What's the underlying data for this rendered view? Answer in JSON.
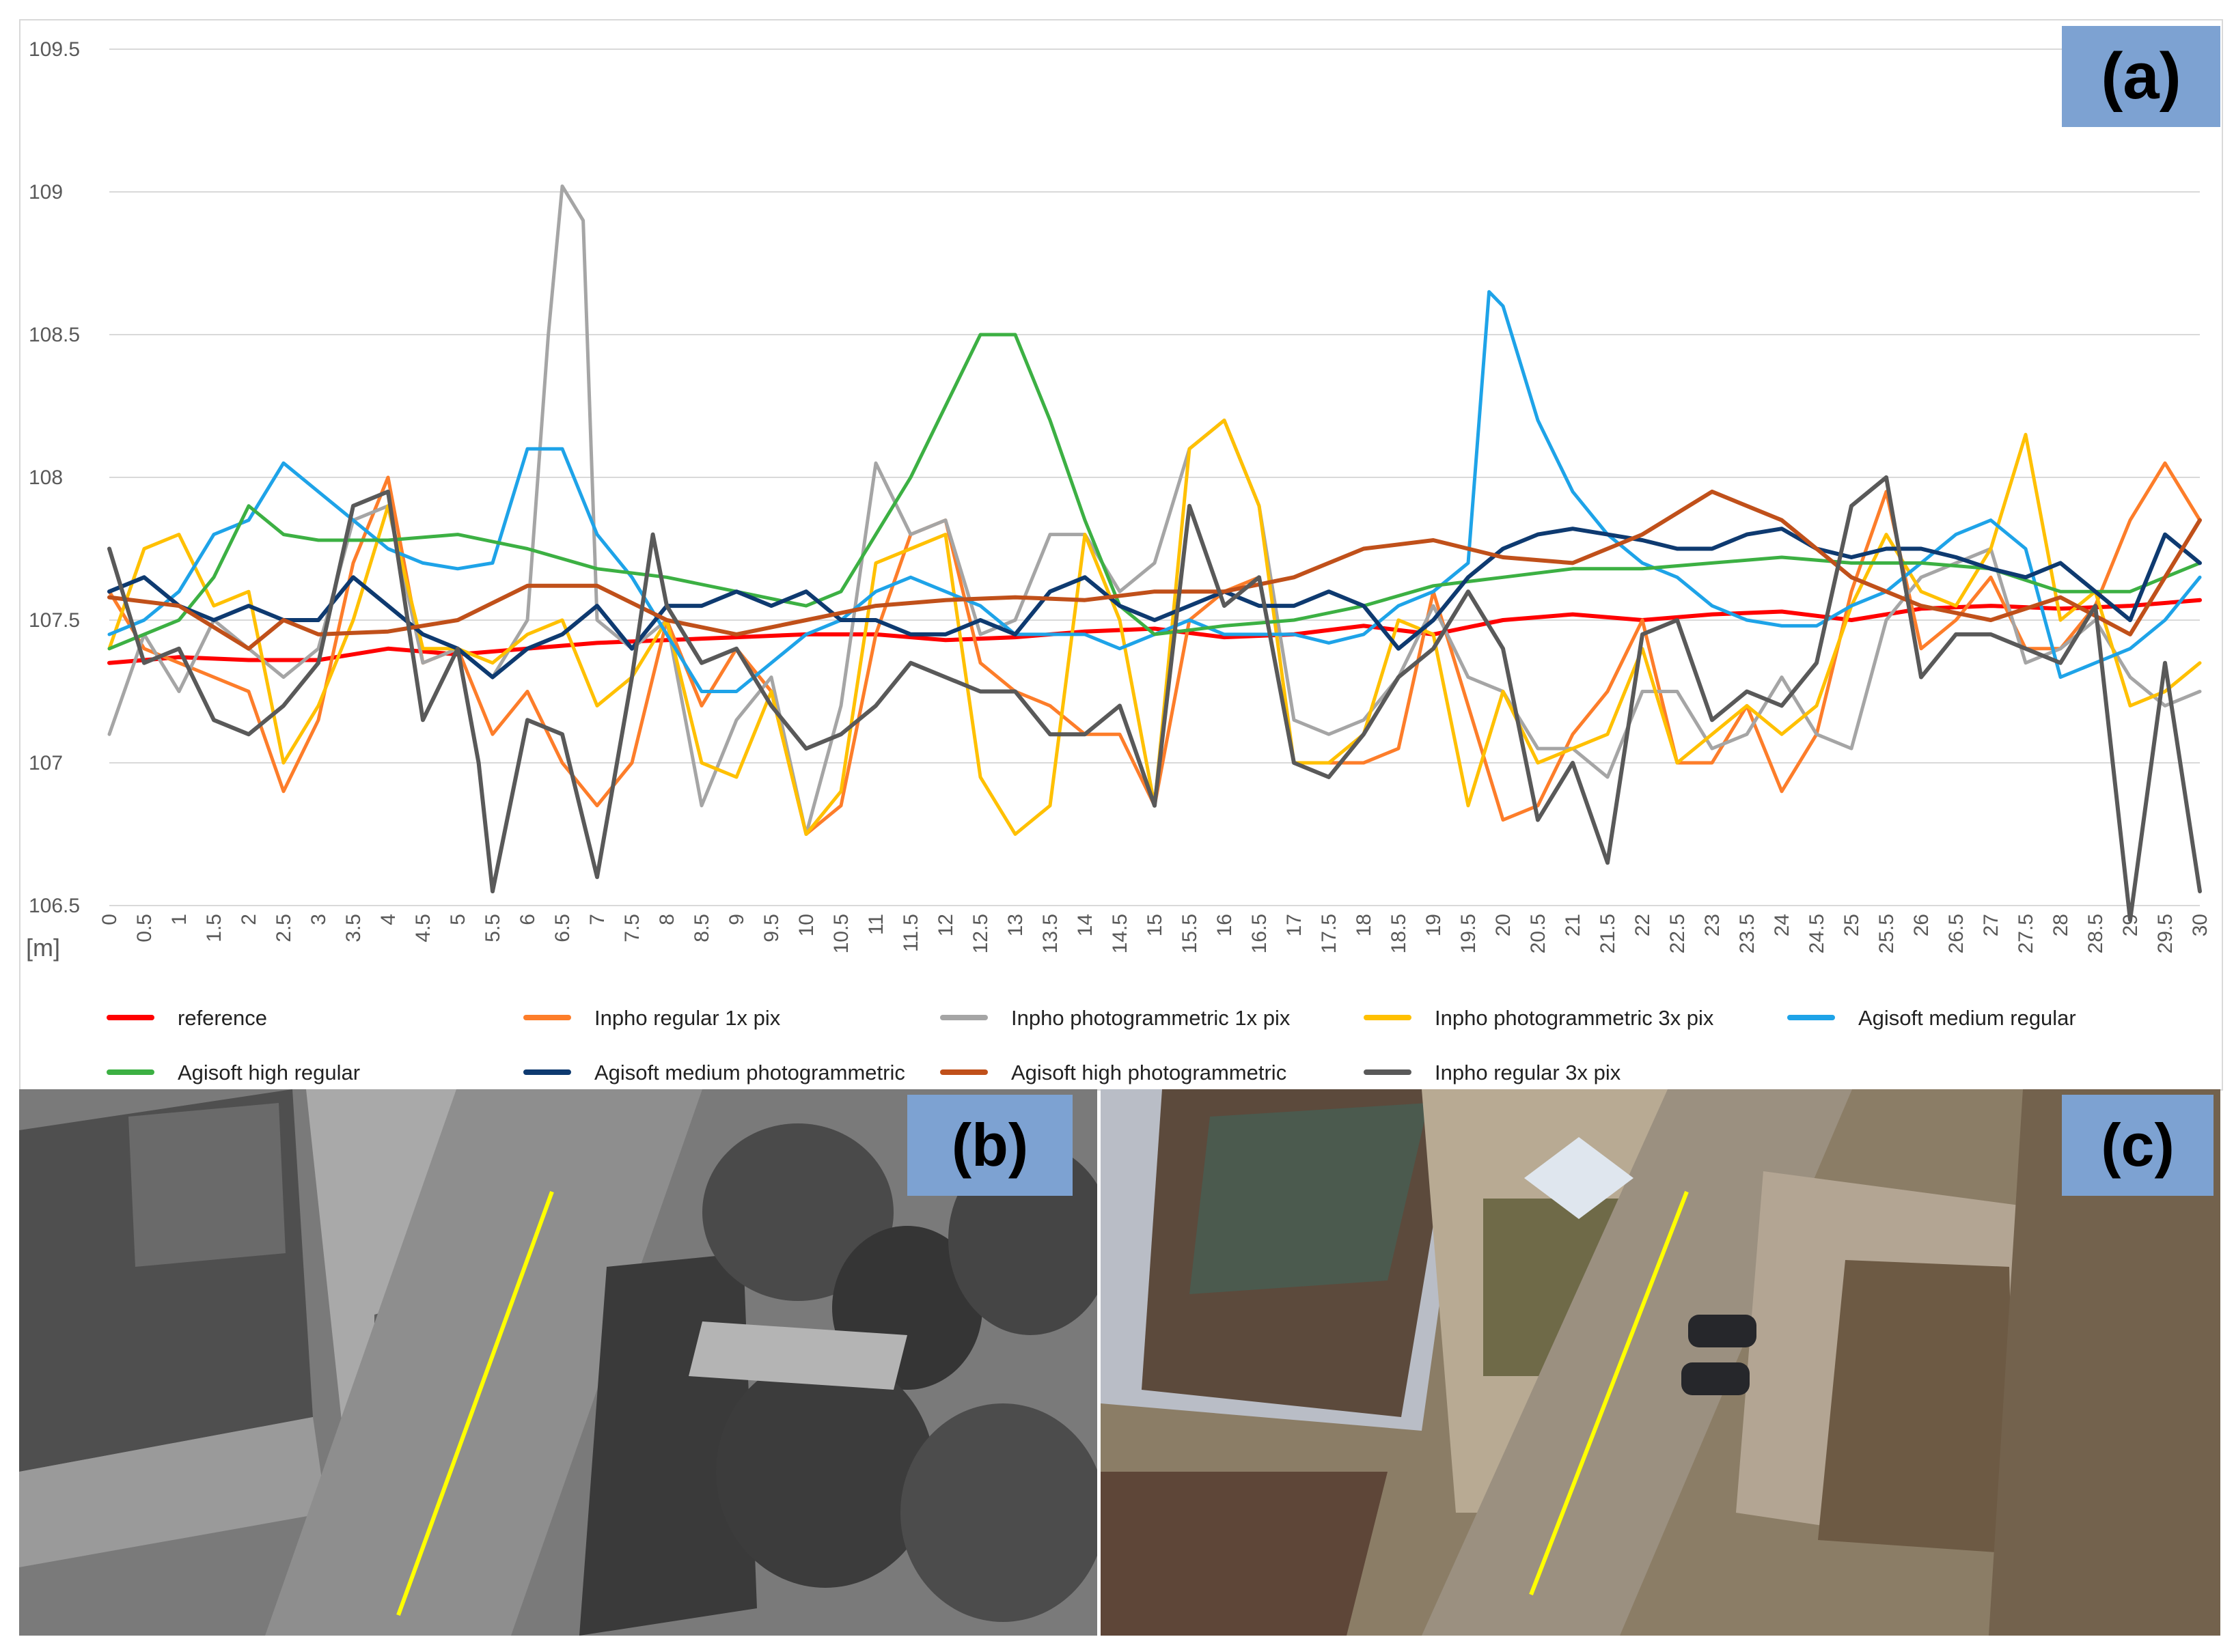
{
  "panels": {
    "a": "(a)",
    "b": "(b)",
    "c": "(c)"
  },
  "chart_data": {
    "type": "line",
    "title": "",
    "xlabel": "[m]",
    "ylabel": "",
    "xlim": [
      0,
      30
    ],
    "ylim": [
      106.5,
      109.5
    ],
    "x_ticks": [
      "0",
      "0.5",
      "1",
      "1.5",
      "2",
      "2.5",
      "3",
      "3.5",
      "4",
      "4.5",
      "5",
      "5.5",
      "6",
      "6.5",
      "7",
      "7.5",
      "8",
      "8.5",
      "9",
      "9.5",
      "10",
      "10.5",
      "11",
      "11.5",
      "12",
      "12.5",
      "13",
      "13.5",
      "14",
      "14.5",
      "15",
      "15.5",
      "16",
      "16.5",
      "17",
      "17.5",
      "18",
      "18.5",
      "19",
      "19.5",
      "20",
      "20.5",
      "21",
      "21.5",
      "22",
      "22.5",
      "23",
      "23.5",
      "24",
      "24.5",
      "25",
      "25.5",
      "26",
      "26.5",
      "27",
      "27.5",
      "28",
      "28.5",
      "29",
      "29.5",
      "30"
    ],
    "y_ticks": [
      "109.5",
      "109",
      "108.5",
      "108",
      "107.5",
      "107",
      "106.5"
    ],
    "grid": "horizontal",
    "legend_position": "bottom",
    "series": [
      {
        "name": "reference",
        "color": "#ff0000",
        "width": 6,
        "x": [
          0,
          1,
          2,
          3,
          4,
          5,
          6,
          7,
          8,
          9,
          10,
          11,
          12,
          13,
          14,
          15,
          16,
          17,
          18,
          19,
          20,
          21,
          22,
          23,
          24,
          25,
          26,
          27,
          28,
          29,
          30
        ],
        "y": [
          107.35,
          107.37,
          107.36,
          107.36,
          107.4,
          107.38,
          107.4,
          107.42,
          107.43,
          107.44,
          107.45,
          107.45,
          107.43,
          107.44,
          107.46,
          107.47,
          107.44,
          107.45,
          107.48,
          107.45,
          107.5,
          107.52,
          107.5,
          107.52,
          107.53,
          107.5,
          107.54,
          107.55,
          107.54,
          107.55,
          107.57
        ]
      },
      {
        "name": "Inpho regular 1x pix",
        "color": "#fd7d2a",
        "width": 5,
        "x": [
          0,
          0.5,
          1,
          1.5,
          2,
          2.5,
          3,
          3.5,
          4,
          4.5,
          5,
          5.5,
          6,
          6.5,
          7,
          7.5,
          8,
          8.5,
          9,
          9.5,
          10,
          10.5,
          11,
          11.5,
          12,
          12.5,
          13,
          13.5,
          14,
          14.5,
          15,
          15.5,
          16,
          16.5,
          17,
          17.5,
          18,
          18.5,
          19,
          19.5,
          20,
          20.5,
          21,
          21.5,
          22,
          22.5,
          23,
          23.5,
          24,
          24.5,
          25,
          25.5,
          26,
          26.5,
          27,
          27.5,
          28,
          28.5,
          29,
          29.5,
          30
        ],
        "y": [
          107.6,
          107.4,
          107.35,
          107.3,
          107.25,
          106.9,
          107.15,
          107.7,
          108.0,
          107.35,
          107.4,
          107.1,
          107.25,
          107.0,
          106.85,
          107.0,
          107.5,
          107.2,
          107.4,
          107.25,
          106.75,
          106.85,
          107.45,
          107.8,
          107.85,
          107.35,
          107.25,
          107.2,
          107.1,
          107.1,
          106.85,
          107.5,
          107.6,
          107.65,
          107.0,
          107.0,
          107.0,
          107.05,
          107.6,
          107.2,
          106.8,
          106.85,
          107.1,
          107.25,
          107.5,
          107.0,
          107.0,
          107.2,
          106.9,
          107.1,
          107.6,
          107.95,
          107.4,
          107.5,
          107.65,
          107.4,
          107.4,
          107.55,
          107.85,
          108.05,
          107.85
        ]
      },
      {
        "name": "Inpho photogrammetric 1x pix",
        "color": "#a5a5a5",
        "width": 5,
        "x": [
          0,
          0.5,
          1,
          1.5,
          2,
          2.5,
          3,
          3.5,
          4,
          4.5,
          5,
          5.5,
          6,
          6.3,
          6.5,
          6.8,
          7,
          7.5,
          8,
          8.5,
          9,
          9.5,
          10,
          10.5,
          11,
          11.5,
          12,
          12.5,
          13,
          13.5,
          14,
          14.5,
          15,
          15.5,
          16,
          16.5,
          17,
          17.5,
          18,
          18.5,
          19,
          19.5,
          20,
          20.5,
          21,
          21.5,
          22,
          22.5,
          23,
          23.5,
          24,
          24.5,
          25,
          25.5,
          26,
          26.5,
          27,
          27.5,
          28,
          28.5,
          29,
          29.5,
          30
        ],
        "y": [
          107.1,
          107.45,
          107.25,
          107.5,
          107.4,
          107.3,
          107.4,
          107.85,
          107.9,
          107.35,
          107.4,
          107.3,
          107.5,
          108.5,
          109.02,
          108.9,
          107.5,
          107.4,
          107.5,
          106.85,
          107.15,
          107.3,
          106.75,
          107.2,
          108.05,
          107.8,
          107.85,
          107.45,
          107.5,
          107.8,
          107.8,
          107.6,
          107.7,
          108.1,
          108.2,
          107.9,
          107.15,
          107.1,
          107.15,
          107.3,
          107.55,
          107.3,
          107.25,
          107.05,
          107.05,
          106.95,
          107.25,
          107.25,
          107.05,
          107.1,
          107.3,
          107.1,
          107.05,
          107.5,
          107.65,
          107.7,
          107.75,
          107.35,
          107.4,
          107.5,
          107.3,
          107.2,
          107.25
        ]
      },
      {
        "name": "Inpho photogrammetric 3x pix",
        "color": "#ffc000",
        "width": 5,
        "x": [
          0,
          0.5,
          1,
          1.5,
          2,
          2.5,
          3,
          3.5,
          4,
          4.5,
          5,
          5.5,
          6,
          6.5,
          7,
          7.5,
          8,
          8.5,
          9,
          9.5,
          10,
          10.5,
          11,
          11.5,
          12,
          12.5,
          13,
          13.5,
          14,
          14.5,
          15,
          15.5,
          16,
          16.5,
          17,
          17.5,
          18,
          18.5,
          19,
          19.5,
          20,
          20.5,
          21,
          21.5,
          22,
          22.5,
          23,
          23.5,
          24,
          24.5,
          25,
          25.5,
          26,
          26.5,
          27,
          27.5,
          28,
          28.5,
          29,
          29.5,
          30
        ],
        "y": [
          107.4,
          107.75,
          107.8,
          107.55,
          107.6,
          107.0,
          107.2,
          107.5,
          107.9,
          107.4,
          107.4,
          107.35,
          107.45,
          107.5,
          107.2,
          107.3,
          107.5,
          107.0,
          106.95,
          107.25,
          106.75,
          106.9,
          107.7,
          107.75,
          107.8,
          106.95,
          106.75,
          106.85,
          107.8,
          107.5,
          106.85,
          108.1,
          108.2,
          107.9,
          107.0,
          107.0,
          107.1,
          107.5,
          107.45,
          106.85,
          107.25,
          107.0,
          107.05,
          107.1,
          107.4,
          107.0,
          107.1,
          107.2,
          107.1,
          107.2,
          107.55,
          107.8,
          107.6,
          107.55,
          107.75,
          108.15,
          107.5,
          107.6,
          107.2,
          107.25,
          107.35
        ]
      },
      {
        "name": "Agisoft medium regular",
        "color": "#1ea3e8",
        "width": 5,
        "x": [
          0,
          0.5,
          1,
          1.5,
          2,
          2.5,
          3,
          3.5,
          4,
          4.5,
          5,
          5.5,
          6,
          6.5,
          7,
          7.5,
          8,
          8.5,
          9,
          9.5,
          10,
          10.5,
          11,
          11.5,
          12,
          12.5,
          13,
          13.5,
          14,
          14.5,
          15,
          15.5,
          16,
          16.5,
          17,
          17.5,
          18,
          18.5,
          19,
          19.5,
          19.8,
          20,
          20.5,
          21,
          21.5,
          22,
          22.5,
          23,
          23.5,
          24,
          24.5,
          25,
          25.5,
          26,
          26.5,
          27,
          27.5,
          28,
          28.5,
          29,
          29.5,
          30
        ],
        "y": [
          107.45,
          107.5,
          107.6,
          107.8,
          107.85,
          108.05,
          107.95,
          107.85,
          107.75,
          107.7,
          107.68,
          107.7,
          108.1,
          108.1,
          107.8,
          107.65,
          107.45,
          107.25,
          107.25,
          107.35,
          107.45,
          107.5,
          107.6,
          107.65,
          107.6,
          107.55,
          107.45,
          107.45,
          107.45,
          107.4,
          107.45,
          107.5,
          107.45,
          107.45,
          107.45,
          107.42,
          107.45,
          107.55,
          107.6,
          107.7,
          108.65,
          108.6,
          108.2,
          107.95,
          107.8,
          107.7,
          107.65,
          107.55,
          107.5,
          107.48,
          107.48,
          107.55,
          107.6,
          107.7,
          107.8,
          107.85,
          107.75,
          107.3,
          107.35,
          107.4,
          107.5,
          107.65
        ]
      },
      {
        "name": "Agisoft high regular",
        "color": "#3cb043",
        "width": 5,
        "x": [
          0,
          1,
          1.5,
          2,
          2.5,
          3,
          4,
          5,
          6,
          7,
          8,
          9,
          10,
          10.5,
          11,
          11.5,
          12,
          12.5,
          13,
          13.5,
          14,
          14.5,
          15,
          16,
          17,
          18,
          19,
          20,
          21,
          22,
          23,
          24,
          25,
          26,
          27,
          28,
          29,
          30
        ],
        "y": [
          107.4,
          107.5,
          107.65,
          107.9,
          107.8,
          107.78,
          107.78,
          107.8,
          107.75,
          107.68,
          107.65,
          107.6,
          107.55,
          107.6,
          107.8,
          108.0,
          108.25,
          108.5,
          108.5,
          108.2,
          107.85,
          107.55,
          107.45,
          107.48,
          107.5,
          107.55,
          107.62,
          107.65,
          107.68,
          107.68,
          107.7,
          107.72,
          107.7,
          107.7,
          107.68,
          107.6,
          107.6,
          107.7
        ]
      },
      {
        "name": "Agisoft medium photogrammetric",
        "color": "#0e3a70",
        "width": 6,
        "x": [
          0,
          0.5,
          1,
          1.5,
          2,
          2.5,
          3,
          3.5,
          4,
          4.5,
          5,
          5.5,
          6,
          6.5,
          7,
          7.5,
          8,
          8.5,
          9,
          9.5,
          10,
          10.5,
          11,
          11.5,
          12,
          12.5,
          13,
          13.5,
          14,
          14.5,
          15,
          15.5,
          16,
          16.5,
          17,
          17.5,
          18,
          18.5,
          19,
          19.5,
          20,
          20.5,
          21,
          21.5,
          22,
          22.5,
          23,
          23.5,
          24,
          24.5,
          25,
          25.5,
          26,
          26.5,
          27,
          27.5,
          28,
          28.5,
          29,
          29.5,
          30
        ],
        "y": [
          107.6,
          107.65,
          107.55,
          107.5,
          107.55,
          107.5,
          107.5,
          107.65,
          107.55,
          107.45,
          107.4,
          107.3,
          107.4,
          107.45,
          107.55,
          107.4,
          107.55,
          107.55,
          107.6,
          107.55,
          107.6,
          107.5,
          107.5,
          107.45,
          107.45,
          107.5,
          107.45,
          107.6,
          107.65,
          107.55,
          107.5,
          107.55,
          107.6,
          107.55,
          107.55,
          107.6,
          107.55,
          107.4,
          107.5,
          107.65,
          107.75,
          107.8,
          107.82,
          107.8,
          107.78,
          107.75,
          107.75,
          107.8,
          107.82,
          107.75,
          107.72,
          107.75,
          107.75,
          107.72,
          107.68,
          107.65,
          107.7,
          107.6,
          107.5,
          107.8,
          107.7
        ]
      },
      {
        "name": "Agisoft high photogrammetric",
        "color": "#c0501a",
        "width": 6,
        "x": [
          0,
          1,
          2,
          2.5,
          3,
          4,
          5,
          6,
          7,
          8,
          9,
          10,
          11,
          12,
          13,
          14,
          15,
          16,
          17,
          18,
          19,
          20,
          21,
          22,
          23,
          24,
          25,
          26,
          27,
          28,
          29,
          29.5,
          30
        ],
        "y": [
          107.58,
          107.55,
          107.4,
          107.5,
          107.45,
          107.46,
          107.5,
          107.62,
          107.62,
          107.5,
          107.45,
          107.5,
          107.55,
          107.57,
          107.58,
          107.57,
          107.6,
          107.6,
          107.65,
          107.75,
          107.78,
          107.72,
          107.7,
          107.8,
          107.95,
          107.85,
          107.65,
          107.55,
          107.5,
          107.58,
          107.45,
          107.65,
          107.85
        ]
      },
      {
        "name": "Inpho regular 3x pix",
        "color": "#595959",
        "width": 6,
        "x": [
          0,
          0.5,
          1,
          1.5,
          2,
          2.5,
          3,
          3.5,
          4,
          4.5,
          5,
          5.3,
          5.5,
          6,
          6.5,
          7,
          7.5,
          7.8,
          8,
          8.5,
          9,
          9.5,
          10,
          10.5,
          11,
          11.5,
          12,
          12.5,
          13,
          13.5,
          14,
          14.5,
          15,
          15.5,
          16,
          16.5,
          17,
          17.5,
          18,
          18.5,
          19,
          19.5,
          20,
          20.5,
          21,
          21.5,
          22,
          22.5,
          23,
          23.5,
          24,
          24.5,
          25,
          25.5,
          26,
          26.5,
          27,
          27.5,
          28,
          28.5,
          29,
          29.5,
          30
        ],
        "y": [
          107.75,
          107.35,
          107.4,
          107.15,
          107.1,
          107.2,
          107.35,
          107.9,
          107.95,
          107.15,
          107.4,
          107.0,
          106.55,
          107.15,
          107.1,
          106.6,
          107.3,
          107.8,
          107.55,
          107.35,
          107.4,
          107.2,
          107.05,
          107.1,
          107.2,
          107.35,
          107.3,
          107.25,
          107.25,
          107.1,
          107.1,
          107.2,
          106.85,
          107.9,
          107.55,
          107.65,
          107.0,
          106.95,
          107.1,
          107.3,
          107.4,
          107.6,
          107.4,
          106.8,
          107.0,
          106.65,
          107.45,
          107.5,
          107.15,
          107.25,
          107.2,
          107.35,
          107.9,
          108.0,
          107.3,
          107.45,
          107.45,
          107.4,
          107.35,
          107.55,
          106.45,
          107.35,
          106.55
        ]
      }
    ]
  }
}
